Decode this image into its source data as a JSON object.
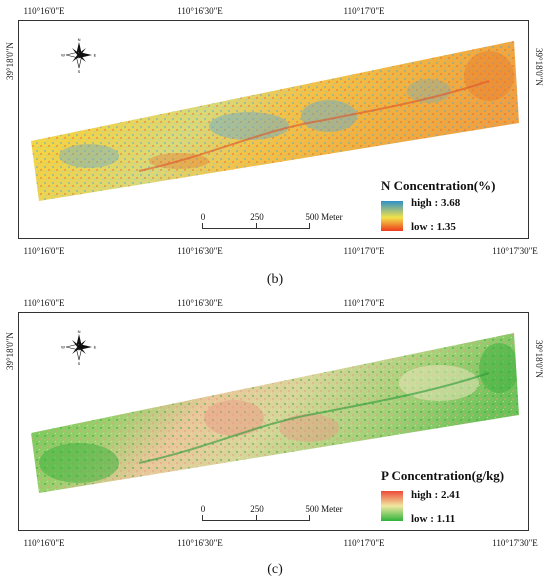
{
  "panels": [
    {
      "id": "b",
      "caption": "(b)",
      "top_labels": [
        "110°16'0\"E",
        "110°16'30\"E",
        "110°17'0\"E"
      ],
      "bottom_labels": [
        "110°16'0\"E",
        "110°16'30\"E",
        "110°17'0\"E",
        "110°17'30\"E"
      ],
      "left_label": "39°18'0\"N",
      "right_label": "39°18'0\"N",
      "legend_title": "N Concentration(%)",
      "legend_high": "high : 3.68",
      "legend_low": "low : 1.35",
      "high_value": 3.68,
      "low_value": 1.35,
      "colors": {
        "high": "#2f8fc9",
        "mid": "#f2e24a",
        "low": "#ee3a1c"
      },
      "scale_labels": [
        "0",
        "250",
        "500 Meter"
      ],
      "compass": {
        "n": "N",
        "s": "S",
        "e": "E",
        "w": "W"
      }
    },
    {
      "id": "c",
      "caption": "(c)",
      "top_labels": [
        "110°16'0\"E",
        "110°16'30\"E",
        "110°17'0\"E"
      ],
      "bottom_labels": [
        "110°16'0\"E",
        "110°16'30\"E",
        "110°17'0\"E",
        "110°17'30\"E"
      ],
      "left_label": "39°18'0\"N",
      "right_label": "39°18'0\"N",
      "legend_title": "P Concentration(g/kg)",
      "legend_high": "high : 2.41",
      "legend_low": "low : 1.11",
      "high_value": 2.41,
      "low_value": 1.11,
      "colors": {
        "high": "#ee4a3a",
        "mid": "#f1e8a0",
        "low": "#2eb33a"
      },
      "scale_labels": [
        "0",
        "250",
        "500 Meter"
      ],
      "compass": {
        "n": "N",
        "s": "S",
        "e": "E",
        "w": "W"
      }
    }
  ]
}
